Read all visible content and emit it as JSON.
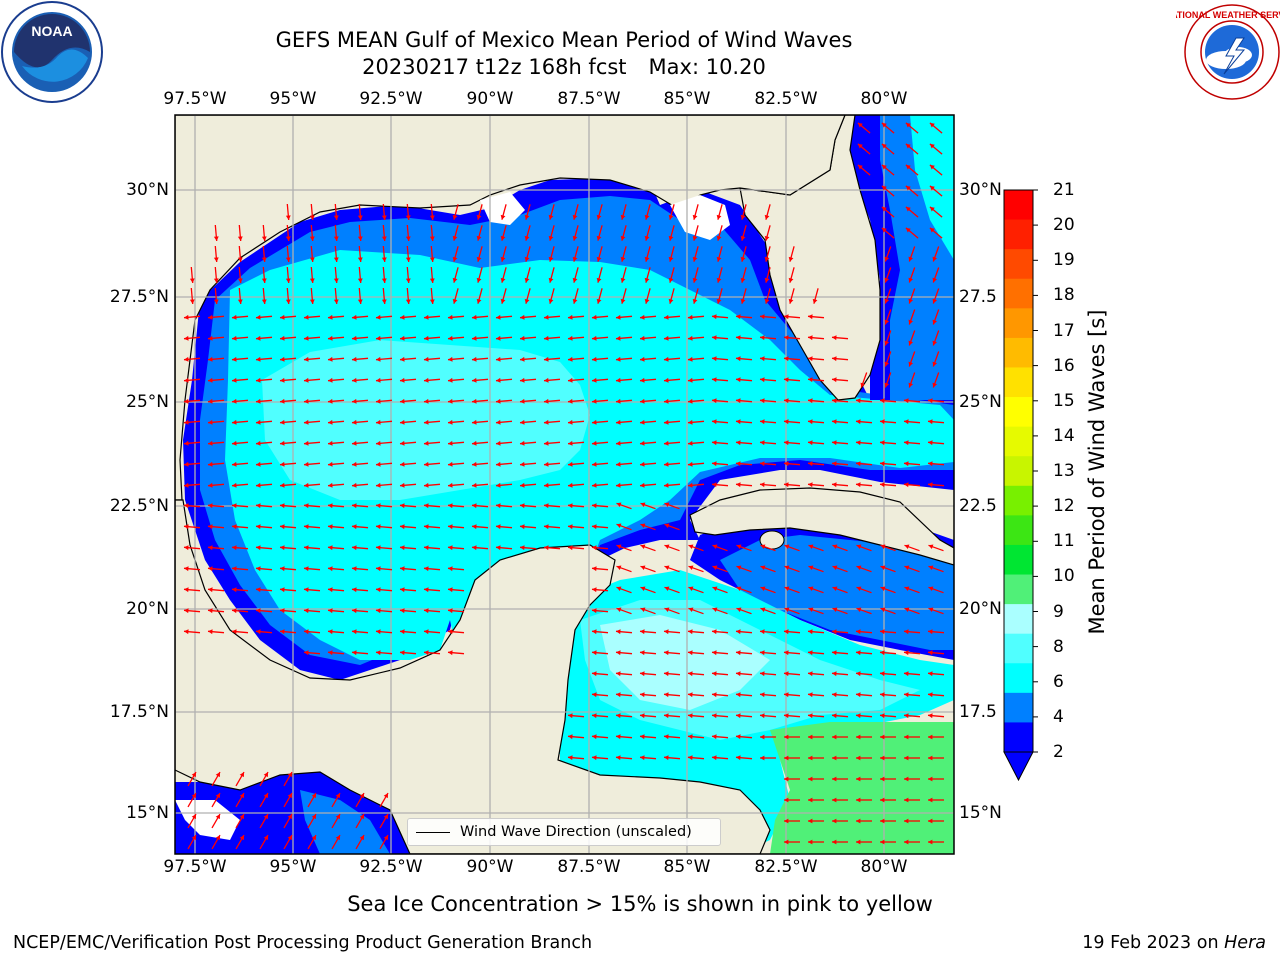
{
  "header": {
    "title_line1": "GEFS MEAN Gulf of Mexico Mean Period of Wind Waves",
    "run_info": "20230217 t12z 168h fcst",
    "max_label": "Max: 10.20"
  },
  "logos": {
    "left": "noaa-logo",
    "right": "nws-logo",
    "left_text": "NOAA",
    "right_text": "NATIONAL WEATHER SERVICE"
  },
  "axes": {
    "lon_labels": [
      "97.5°W",
      "95°W",
      "92.5°W",
      "90°W",
      "87.5°W",
      "85°W",
      "82.5°W",
      "80°W"
    ],
    "lat_labels_left": [
      "30°N",
      "27.5°N",
      "25°N",
      "22.5°N",
      "20°N",
      "17.5°N",
      "15°N"
    ],
    "lat_labels_right": [
      "30°N",
      "27.5",
      "25°N",
      "22.5",
      "20°N",
      "17.5",
      "15°N"
    ]
  },
  "colorbar": {
    "title": "Mean Period of Wind Waves [s]",
    "ticks": [
      "21",
      "20",
      "19",
      "18",
      "17",
      "16",
      "15",
      "14",
      "13",
      "12",
      "11",
      "10",
      "9",
      "8",
      "6",
      "4",
      "2"
    ],
    "colors": [
      "#ff0000",
      "#ff2000",
      "#ff4a00",
      "#ff7000",
      "#ff9700",
      "#ffbb00",
      "#ffe100",
      "#ffff00",
      "#e6fa00",
      "#c8f500",
      "#78f000",
      "#3ce614",
      "#00e632",
      "#50f078",
      "#aaffff",
      "#50ffff",
      "#00ffff",
      "#0080ff",
      "#0000ff"
    ]
  },
  "legend": {
    "label": "Wind Wave Direction (unscaled)"
  },
  "footer": {
    "note": "Sea Ice Concentration > 15% is shown in pink to yellow",
    "left": "NCEP/EMC/Verification Post Processing Product Generation Branch",
    "date": "19 Feb 2023 on",
    "machine": "Hera"
  },
  "colors": {
    "land": "#efeddb",
    "grid": "#b0b0b0",
    "arrow": "#ff0000",
    "period_2_4": "#0000ff",
    "period_4_6": "#0080ff",
    "period_6_8": "#00ffff",
    "period_8_9": "#50ffff",
    "period_9_10": "#aaffff",
    "period_10_11": "#50f078"
  }
}
